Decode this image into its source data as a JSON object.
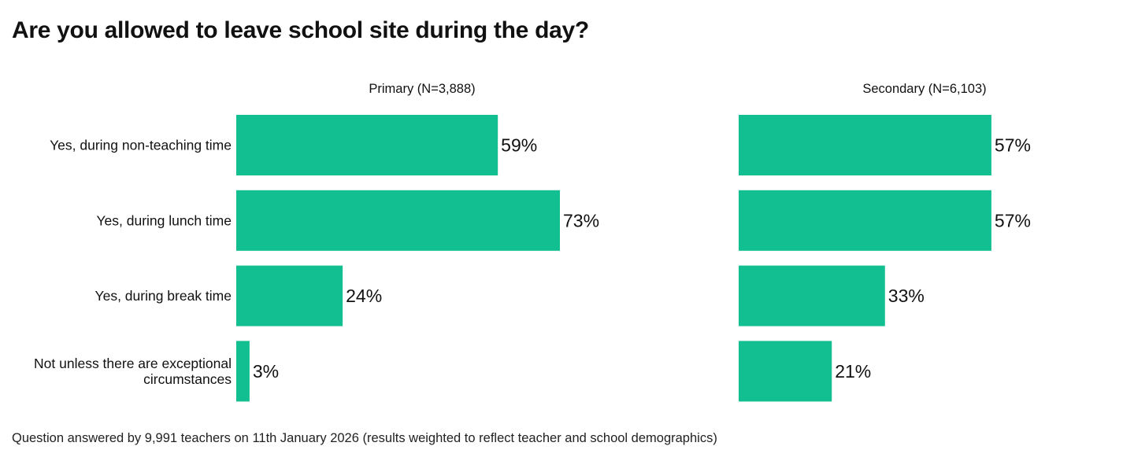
{
  "title": "Are you allowed to leave school site during the day?",
  "footnote": "Question answered by 9,991 teachers on 11th January 2026 (results weighted to reflect teacher and school demographics)",
  "colors": {
    "bar": "#12BF90",
    "text": "#111111"
  },
  "chart_data": {
    "type": "bar",
    "orientation": "horizontal",
    "title": "Are you allowed to leave school site during the day?",
    "categories": [
      [
        "Yes, during non-teaching time"
      ],
      [
        "Yes, during lunch time"
      ],
      [
        "Yes, during break time"
      ],
      [
        "Not unless there are exceptional",
        "circumstances"
      ]
    ],
    "series": [
      {
        "name": "Primary (N=3,888)",
        "values": [
          59,
          73,
          24,
          3
        ],
        "labels": [
          "59%",
          "73%",
          "24%",
          "3%"
        ]
      },
      {
        "name": "Secondary (N=6,103)",
        "values": [
          57,
          57,
          33,
          21
        ],
        "labels": [
          "57%",
          "57%",
          "33%",
          "21%"
        ]
      }
    ],
    "unit": "%",
    "xlim": [
      0,
      100
    ],
    "grid": false
  }
}
